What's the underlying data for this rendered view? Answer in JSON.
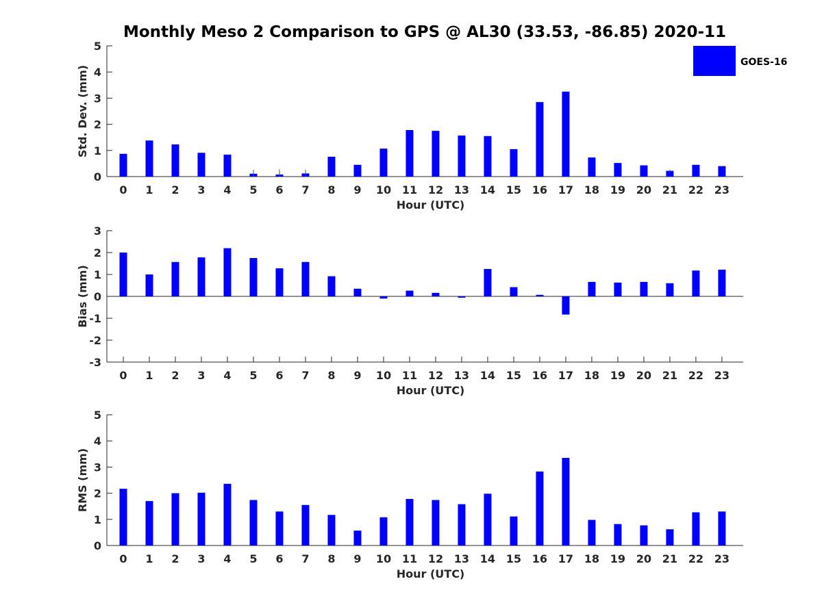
{
  "figure": {
    "title": "Monthly Meso 2 Comparison to GPS @ AL30 (33.53, -86.85) 2020-11"
  },
  "legend": {
    "label": "GOES-16",
    "color": "#0000ff"
  },
  "chart_data": [
    {
      "type": "bar",
      "title": "Monthly Meso 2 Comparison to GPS @ AL30 (33.53, -86.85) 2020-11",
      "xlabel": "Hour (UTC)",
      "ylabel": "Std. Dev. (mm)",
      "ylim": [
        0,
        5
      ],
      "yticks": [
        "0",
        "1",
        "2",
        "3",
        "4",
        "5"
      ],
      "categories": [
        "0",
        "1",
        "2",
        "3",
        "4",
        "5",
        "6",
        "7",
        "8",
        "9",
        "10",
        "11",
        "12",
        "13",
        "14",
        "15",
        "16",
        "17",
        "18",
        "19",
        "20",
        "21",
        "22",
        "23"
      ],
      "series": [
        {
          "name": "GOES-16",
          "color": "#0000ff",
          "values": [
            0.87,
            1.38,
            1.23,
            0.91,
            0.84,
            0.11,
            0.08,
            0.12,
            0.76,
            0.45,
            1.07,
            1.78,
            1.75,
            1.57,
            1.55,
            1.05,
            2.85,
            3.25,
            0.73,
            0.52,
            0.43,
            0.22,
            0.45,
            0.4
          ]
        }
      ],
      "error_bars": [
        0,
        0,
        0,
        0,
        0,
        0.15,
        0.2,
        0.15,
        0,
        0,
        0,
        0,
        0,
        0,
        0,
        0,
        0,
        0,
        0,
        0,
        0,
        0.05,
        0,
        0
      ],
      "legend": "top-right",
      "grid": false
    },
    {
      "type": "bar",
      "xlabel": "Hour (UTC)",
      "ylabel": "Bias (mm)",
      "ylim": [
        -3,
        3
      ],
      "yticks": [
        "-3",
        "-2",
        "-1",
        "0",
        "1",
        "2",
        "3"
      ],
      "categories": [
        "0",
        "1",
        "2",
        "3",
        "4",
        "5",
        "6",
        "7",
        "8",
        "9",
        "10",
        "11",
        "12",
        "13",
        "14",
        "15",
        "16",
        "17",
        "18",
        "19",
        "20",
        "21",
        "22",
        "23"
      ],
      "series": [
        {
          "name": "GOES-16",
          "color": "#0000ff",
          "values": [
            2.0,
            1.0,
            1.57,
            1.78,
            2.2,
            1.75,
            1.28,
            1.57,
            0.92,
            0.35,
            -0.1,
            0.26,
            0.16,
            -0.06,
            1.25,
            0.42,
            0.07,
            -0.83,
            0.66,
            0.63,
            0.66,
            0.6,
            1.18,
            1.22
          ]
        }
      ],
      "grid": false
    },
    {
      "type": "bar",
      "xlabel": "Hour (UTC)",
      "ylabel": "RMS (mm)",
      "ylim": [
        0,
        5
      ],
      "yticks": [
        "0",
        "1",
        "2",
        "3",
        "4",
        "5"
      ],
      "categories": [
        "0",
        "1",
        "2",
        "3",
        "4",
        "5",
        "6",
        "7",
        "8",
        "9",
        "10",
        "11",
        "12",
        "13",
        "14",
        "15",
        "16",
        "17",
        "18",
        "19",
        "20",
        "21",
        "22",
        "23"
      ],
      "series": [
        {
          "name": "GOES-16",
          "color": "#0000ff",
          "values": [
            2.17,
            1.7,
            2.0,
            2.02,
            2.36,
            1.74,
            1.3,
            1.55,
            1.17,
            0.57,
            1.08,
            1.78,
            1.74,
            1.58,
            1.98,
            1.11,
            2.83,
            3.35,
            0.98,
            0.82,
            0.77,
            0.62,
            1.27,
            1.3
          ]
        }
      ],
      "grid": false
    }
  ]
}
